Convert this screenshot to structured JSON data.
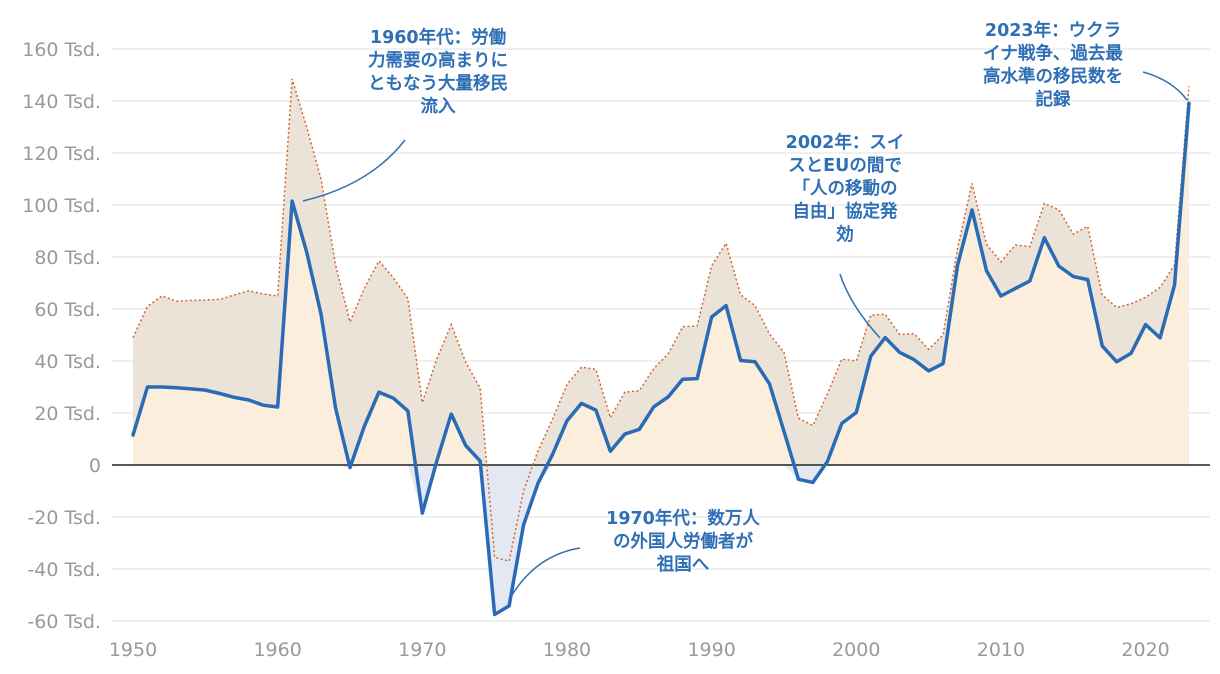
{
  "chart_data": {
    "type": "area",
    "ylim": [
      -60000,
      160000
    ],
    "xlim": [
      1950,
      2023
    ],
    "y_ticks": [
      {
        "value": 160000,
        "label": "160 Tsd."
      },
      {
        "value": 140000,
        "label": "140 Tsd."
      },
      {
        "value": 120000,
        "label": "120 Tsd."
      },
      {
        "value": 100000,
        "label": "100 Tsd."
      },
      {
        "value": 80000,
        "label": "80 Tsd."
      },
      {
        "value": 60000,
        "label": "60 Tsd."
      },
      {
        "value": 40000,
        "label": "40 Tsd."
      },
      {
        "value": 20000,
        "label": "20 Tsd."
      },
      {
        "value": 0,
        "label": "0"
      },
      {
        "value": -20000,
        "label": "-20 Tsd."
      },
      {
        "value": -40000,
        "label": "-40 Tsd."
      },
      {
        "value": -60000,
        "label": "-60 Tsd."
      }
    ],
    "x_ticks": [
      {
        "value": 1950,
        "label": "1950"
      },
      {
        "value": 1960,
        "label": "1960"
      },
      {
        "value": 1970,
        "label": "1970"
      },
      {
        "value": 1980,
        "label": "1980"
      },
      {
        "value": 1990,
        "label": "1990"
      },
      {
        "value": 2000,
        "label": "2000"
      },
      {
        "value": 2010,
        "label": "2010"
      },
      {
        "value": 2020,
        "label": "2020"
      }
    ],
    "x": [
      1950,
      1951,
      1952,
      1953,
      1954,
      1955,
      1956,
      1957,
      1958,
      1959,
      1960,
      1961,
      1962,
      1963,
      1964,
      1965,
      1966,
      1967,
      1968,
      1969,
      1970,
      1971,
      1972,
      1973,
      1974,
      1975,
      1976,
      1977,
      1978,
      1979,
      1980,
      1981,
      1982,
      1983,
      1984,
      1985,
      1986,
      1987,
      1988,
      1989,
      1990,
      1991,
      1992,
      1993,
      1994,
      1995,
      1996,
      1997,
      1998,
      1999,
      2000,
      2001,
      2002,
      2003,
      2004,
      2005,
      2006,
      2007,
      2008,
      2009,
      2010,
      2011,
      2012,
      2013,
      2014,
      2015,
      2016,
      2017,
      2018,
      2019,
      2020,
      2021,
      2022,
      2023
    ],
    "series": [
      {
        "name": "main",
        "color": "#2a6bb5",
        "values": [
          11500,
          30000,
          30000,
          29700,
          29300,
          28800,
          27500,
          26000,
          25000,
          23000,
          22300,
          101500,
          82000,
          58000,
          22000,
          -1000,
          15000,
          28000,
          25700,
          20800,
          -18500,
          1500,
          19600,
          7500,
          1500,
          -57500,
          -54200,
          -23000,
          -7000,
          4000,
          17000,
          23700,
          21100,
          5300,
          11900,
          13700,
          22400,
          26200,
          33000,
          33200,
          56900,
          61300,
          40200,
          39700,
          31200,
          13000,
          -5500,
          -6700,
          1300,
          16000,
          20200,
          41800,
          49000,
          43300,
          40500,
          36200,
          39000,
          76800,
          98100,
          74700,
          65000,
          67900,
          70800,
          87400,
          76500,
          72500,
          71300,
          45800,
          39700,
          43000,
          54000,
          48900,
          69200,
          139100
        ]
      },
      {
        "name": "upper",
        "color": "#d9632e",
        "values": [
          49000,
          61000,
          65000,
          63000,
          63300,
          63400,
          63700,
          65400,
          67000,
          65800,
          65000,
          148500,
          130000,
          110000,
          77000,
          55000,
          68000,
          78500,
          72000,
          64000,
          24000,
          40800,
          54000,
          39500,
          29600,
          -35500,
          -37000,
          -10000,
          5500,
          17500,
          31000,
          37600,
          36800,
          18200,
          28000,
          28600,
          37100,
          42800,
          53200,
          53500,
          76600,
          85300,
          65500,
          61300,
          50400,
          43300,
          18000,
          15200,
          27300,
          40700,
          40000,
          57600,
          58000,
          50200,
          50500,
          44500,
          50000,
          83300,
          108300,
          84900,
          78100,
          84600,
          84000,
          100600,
          98200,
          88800,
          91800,
          65400,
          60600,
          62000,
          64500,
          68300,
          76900,
          145700
        ]
      }
    ],
    "annotations": [
      {
        "text": "1960年代：労働力需要の高まりにともなう大量移民流入",
        "lines": [
          "1960年代：労働",
          "力需要の高まりに",
          "ともなう大量移民",
          "流入"
        ]
      },
      {
        "text": "1970年代：数万人の外国人労働者が祖国へ",
        "lines": [
          "1970年代：数万人",
          "の外国人労働者が",
          "祖国へ"
        ]
      },
      {
        "text": "2002年：スイスとEUの間で「人の移動の自由」協定発効",
        "lines": [
          "2002年：スイ",
          "スとEUの間で",
          "「人の移動の",
          "自由」協定発",
          "効"
        ]
      },
      {
        "text": "2023年：ウクライナ戦争、過去最高水準の移民数を記録",
        "lines": [
          "2023年：ウクラ",
          "イナ戦争、過去最",
          "高水準の移民数を",
          "記録"
        ]
      }
    ]
  }
}
